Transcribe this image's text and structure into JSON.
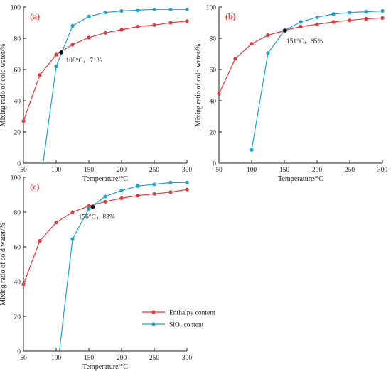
{
  "colors": {
    "enthalpy": "#e8373a",
    "sio2": "#1aa3d6",
    "intersection": "#111111",
    "panel_label": "#e8373a"
  },
  "legend": {
    "enthalpy": "Enthalpy content",
    "sio2": "SiO₂ content",
    "placement": "lower-right of panel (c)"
  },
  "chart_data": [
    {
      "type": "line",
      "panel": "(a)",
      "xlabel": "Temperature/°C",
      "ylabel": "Mixing ratio of cold water/%",
      "xlim": [
        50,
        300
      ],
      "ylim": [
        0,
        100
      ],
      "xticks": [
        "50",
        "100",
        "150",
        "200",
        "250",
        "300"
      ],
      "yticks": [
        "0",
        "20",
        "40",
        "60",
        "80",
        "100"
      ],
      "series": [
        {
          "name": "Enthalpy content",
          "x": [
            50,
            75,
            100,
            125,
            150,
            175,
            200,
            225,
            250,
            275,
            300
          ],
          "y": [
            27,
            56.5,
            69.5,
            76,
            80.5,
            83.5,
            85.5,
            87.5,
            88.5,
            90,
            91
          ]
        },
        {
          "name": "SiO₂ content",
          "x": [
            80,
            100,
            125,
            150,
            175,
            200,
            225,
            250,
            275,
            300
          ],
          "y": [
            0,
            62,
            88,
            94,
            96.5,
            97.5,
            98,
            98.5,
            98.5,
            98.5
          ]
        }
      ],
      "intersection": {
        "x": 108,
        "y": 71,
        "label": "108°C，71%"
      }
    },
    {
      "type": "line",
      "panel": "(b)",
      "xlabel": "Temperature/°C",
      "ylabel": "Mixing ratio of cold water/%",
      "xlim": [
        50,
        300
      ],
      "ylim": [
        0,
        100
      ],
      "xticks": [
        "50",
        "100",
        "150",
        "200",
        "250",
        "300"
      ],
      "yticks": [
        "0",
        "20",
        "40",
        "60",
        "80",
        "100"
      ],
      "series": [
        {
          "name": "Enthalpy content",
          "x": [
            50,
            75,
            100,
            125,
            150,
            175,
            200,
            225,
            250,
            275,
            300
          ],
          "y": [
            44.5,
            67,
            76.5,
            82,
            85,
            87.5,
            89,
            90.5,
            91.5,
            92.5,
            93
          ]
        },
        {
          "name": "SiO₂ content",
          "x": [
            100,
            125,
            150,
            175,
            200,
            225,
            250,
            275,
            300
          ],
          "y": [
            8.5,
            70.5,
            85,
            90.5,
            93.5,
            95.5,
            96.5,
            97,
            97.5
          ]
        }
      ],
      "intersection": {
        "x": 151,
        "y": 85,
        "label": "151°C，85%"
      }
    },
    {
      "type": "line",
      "panel": "(c)",
      "xlabel": "Temperature/°C",
      "ylabel": "Mixing ratio of cold water/%",
      "xlim": [
        50,
        300
      ],
      "ylim": [
        0,
        100
      ],
      "xticks": [
        "50",
        "100",
        "150",
        "200",
        "250",
        "300"
      ],
      "yticks": [
        "0",
        "20",
        "40",
        "60",
        "80",
        "100"
      ],
      "series": [
        {
          "name": "Enthalpy content",
          "x": [
            50,
            75,
            100,
            125,
            150,
            175,
            200,
            225,
            250,
            275,
            300
          ],
          "y": [
            38.5,
            63.5,
            74,
            80,
            83.5,
            86,
            88,
            89.5,
            90.5,
            91.5,
            93
          ]
        },
        {
          "name": "SiO₂ content",
          "x": [
            105,
            125,
            150,
            175,
            200,
            225,
            250,
            275,
            300
          ],
          "y": [
            0,
            64.5,
            82,
            89,
            92.5,
            95,
            96,
            97,
            97
          ]
        }
      ],
      "intersection": {
        "x": 156,
        "y": 83,
        "label": "156°C，83%"
      }
    }
  ]
}
